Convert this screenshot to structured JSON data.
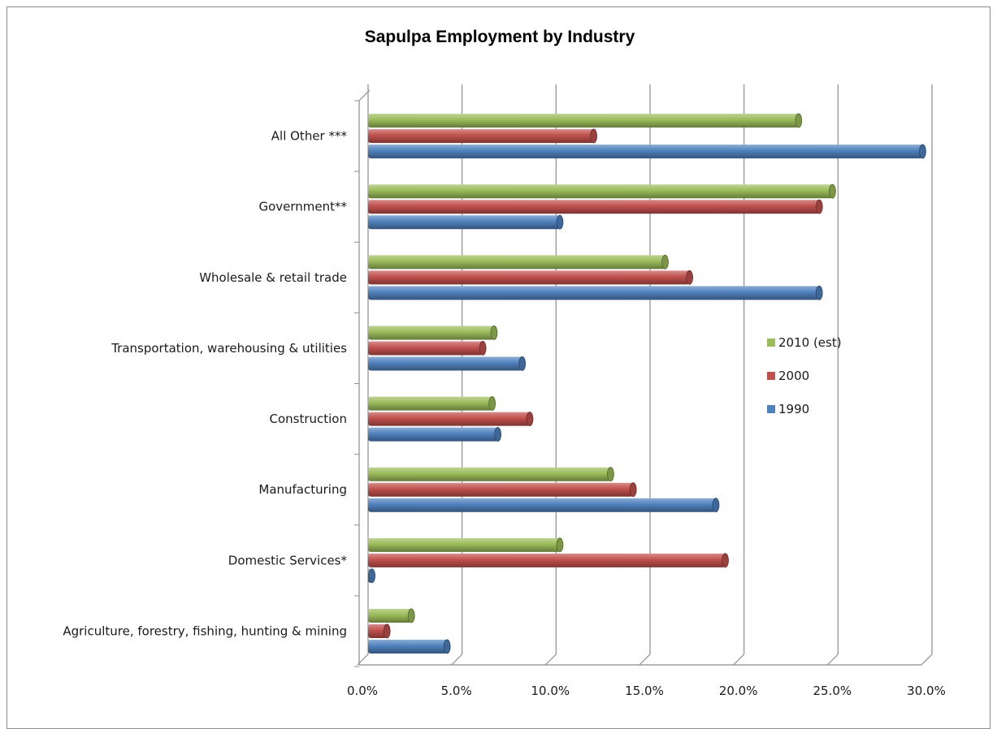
{
  "chart_data": {
    "type": "bar",
    "orientation": "horizontal",
    "title": "Sapulpa Employment by Industry",
    "xlabel": "",
    "ylabel": "",
    "xlim": [
      0,
      0.3
    ],
    "x_ticks": [
      "0.0%",
      "5.0%",
      "10.0%",
      "15.0%",
      "20.0%",
      "25.0%",
      "30.0%"
    ],
    "grid": true,
    "legend_position": "right",
    "categories": [
      "All Other ***",
      "Government**",
      "Wholesale & retail trade",
      "Transportation, warehousing & utilities",
      "Construction",
      "Manufacturing",
      "Domestic Services*",
      "Agriculture, forestry, fishing, hunting & mining"
    ],
    "series": [
      {
        "name": "2010 (est)",
        "color": "#9bbb59",
        "values": [
          0.229,
          0.247,
          0.158,
          0.067,
          0.066,
          0.129,
          0.102,
          0.023
        ]
      },
      {
        "name": "2000",
        "color": "#c0504d",
        "values": [
          0.12,
          0.24,
          0.171,
          0.061,
          0.086,
          0.141,
          0.19,
          0.01
        ]
      },
      {
        "name": "1990",
        "color": "#4f81bd",
        "values": [
          0.295,
          0.102,
          0.24,
          0.082,
          0.069,
          0.185,
          0.002,
          0.042
        ]
      }
    ],
    "legend_order": [
      "2010 (est)",
      "2000",
      "1990"
    ]
  }
}
